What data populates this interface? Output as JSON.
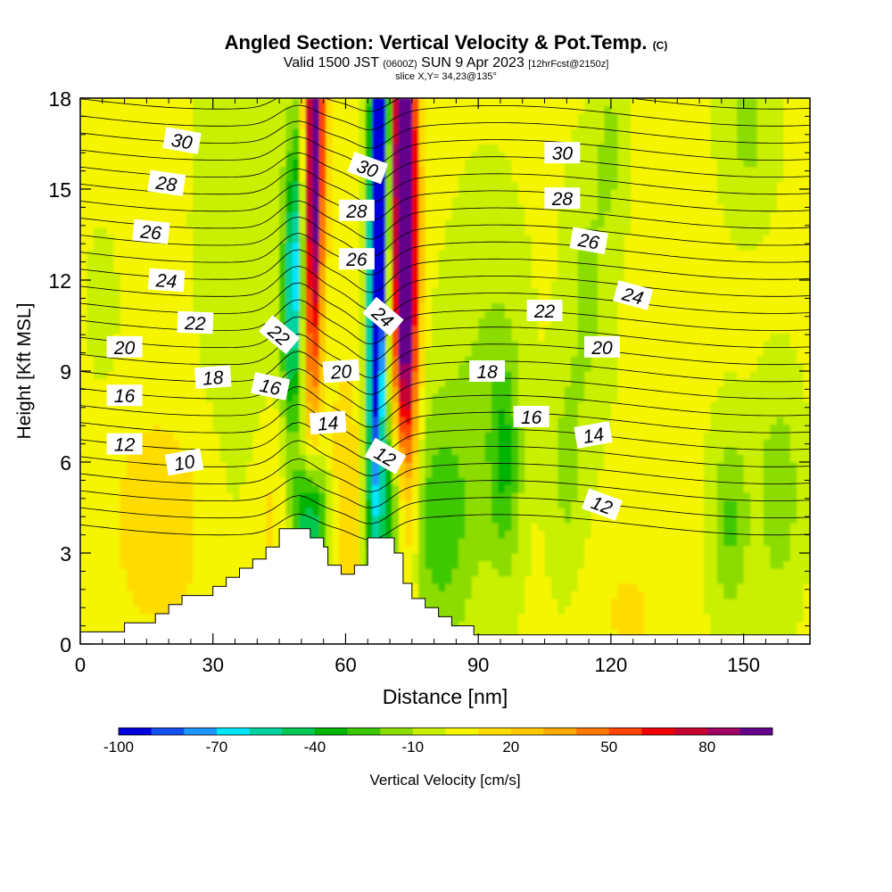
{
  "header": {
    "title": "Angled Section: Vertical Velocity & Pot.Temp.",
    "title_unit": "(C)",
    "valid_prefix": "Valid 1500 JST",
    "valid_utc": "(0600Z)",
    "valid_date": "SUN 9 Apr 2023",
    "forecast": "[12hrFcst@2150z]",
    "slice": "slice X,Y= 34,23@135°"
  },
  "chart_data": {
    "type": "heatmap",
    "xlabel": "Distance [nm]",
    "ylabel": "Height [Kft MSL]",
    "xlim": [
      0,
      165
    ],
    "ylim": [
      0,
      18
    ],
    "x_ticks": [
      0,
      30,
      60,
      90,
      120,
      150
    ],
    "y_ticks": [
      0,
      3,
      6,
      9,
      12,
      15,
      18
    ],
    "grid": false,
    "colorbar": {
      "label": "Vertical Velocity [cm/s]",
      "placement": "bottom",
      "min": -100,
      "max": 90,
      "step": 10,
      "tick_labels": [
        -100,
        -70,
        -40,
        -10,
        20,
        50,
        80
      ],
      "colors": [
        "#0000dc",
        "#1450f0",
        "#1e96ff",
        "#00e6ff",
        "#00d2a0",
        "#00c850",
        "#00b400",
        "#3cc800",
        "#8cdc00",
        "#c8f000",
        "#f5f500",
        "#ffdc00",
        "#ffc800",
        "#ffaa00",
        "#ff7800",
        "#ff4600",
        "#f00000",
        "#c80032",
        "#a00064",
        "#64008c"
      ]
    },
    "terrain": [
      [
        0,
        0.4
      ],
      [
        10,
        0.4
      ],
      [
        10,
        0.7
      ],
      [
        17,
        0.7
      ],
      [
        17,
        1.0
      ],
      [
        20,
        1.0
      ],
      [
        20,
        1.3
      ],
      [
        23,
        1.3
      ],
      [
        23,
        1.6
      ],
      [
        27,
        1.6
      ],
      [
        27,
        1.6
      ],
      [
        30,
        1.6
      ],
      [
        30,
        1.9
      ],
      [
        33,
        1.9
      ],
      [
        33,
        2.2
      ],
      [
        36,
        2.2
      ],
      [
        36,
        2.5
      ],
      [
        39,
        2.5
      ],
      [
        39,
        2.8
      ],
      [
        42,
        2.8
      ],
      [
        42,
        3.2
      ],
      [
        45,
        3.2
      ],
      [
        45,
        3.8
      ],
      [
        52,
        3.8
      ],
      [
        52,
        3.5
      ],
      [
        55,
        3.5
      ],
      [
        55,
        3.2
      ],
      [
        56,
        3.2
      ],
      [
        56,
        2.6
      ],
      [
        59,
        2.6
      ],
      [
        59,
        2.3
      ],
      [
        62,
        2.3
      ],
      [
        62,
        2.6
      ],
      [
        65,
        2.6
      ],
      [
        65,
        3.5
      ],
      [
        71,
        3.5
      ],
      [
        71,
        3.0
      ],
      [
        73,
        3.0
      ],
      [
        73,
        2.0
      ],
      [
        75,
        2.0
      ],
      [
        75,
        1.5
      ],
      [
        78,
        1.5
      ],
      [
        78,
        1.2
      ],
      [
        81,
        1.2
      ],
      [
        81,
        0.9
      ],
      [
        84,
        0.9
      ],
      [
        84,
        0.6
      ],
      [
        89,
        0.6
      ],
      [
        89,
        0.3
      ],
      [
        165,
        0.3
      ]
    ],
    "theta_labels": [
      {
        "text": "30",
        "x": 23,
        "y": 16.6,
        "rot": 10
      },
      {
        "text": "28",
        "x": 19.5,
        "y": 15.2,
        "rot": 8
      },
      {
        "text": "26",
        "x": 16,
        "y": 13.6,
        "rot": 6
      },
      {
        "text": "24",
        "x": 19.5,
        "y": 12.0,
        "rot": 4
      },
      {
        "text": "22",
        "x": 26,
        "y": 10.6,
        "rot": 2
      },
      {
        "text": "20",
        "x": 10,
        "y": 9.8,
        "rot": 0
      },
      {
        "text": "18",
        "x": 30,
        "y": 8.8,
        "rot": -4
      },
      {
        "text": "16",
        "x": 10,
        "y": 8.2,
        "rot": 0
      },
      {
        "text": "16",
        "x": 43,
        "y": 8.5,
        "rot": 12
      },
      {
        "text": "14",
        "x": 56,
        "y": 7.3,
        "rot": -4
      },
      {
        "text": "12",
        "x": 10,
        "y": 6.6,
        "rot": 0
      },
      {
        "text": "10",
        "x": 23.5,
        "y": 6.0,
        "rot": -10
      },
      {
        "text": "22",
        "x": 45,
        "y": 10.2,
        "rot": 40
      },
      {
        "text": "20",
        "x": 59,
        "y": 9.0,
        "rot": -4
      },
      {
        "text": "30",
        "x": 65,
        "y": 15.7,
        "rot": 20
      },
      {
        "text": "28",
        "x": 62.5,
        "y": 14.3,
        "rot": 0
      },
      {
        "text": "26",
        "x": 62.5,
        "y": 12.7,
        "rot": 0
      },
      {
        "text": "24",
        "x": 68.5,
        "y": 10.8,
        "rot": 40
      },
      {
        "text": "12",
        "x": 69,
        "y": 6.2,
        "rot": 30
      },
      {
        "text": "18",
        "x": 92,
        "y": 9.0,
        "rot": 0
      },
      {
        "text": "16",
        "x": 102,
        "y": 7.5,
        "rot": 0
      },
      {
        "text": "14",
        "x": 116,
        "y": 6.9,
        "rot": -10
      },
      {
        "text": "12",
        "x": 118,
        "y": 4.6,
        "rot": 20
      },
      {
        "text": "20",
        "x": 118,
        "y": 9.8,
        "rot": 0
      },
      {
        "text": "22",
        "x": 105,
        "y": 11.0,
        "rot": 0
      },
      {
        "text": "24",
        "x": 125,
        "y": 11.5,
        "rot": 15
      },
      {
        "text": "26",
        "x": 115,
        "y": 13.3,
        "rot": 10
      },
      {
        "text": "28",
        "x": 109,
        "y": 14.7,
        "rot": 0
      },
      {
        "text": "30",
        "x": 109,
        "y": 16.2,
        "rot": 0
      }
    ]
  }
}
